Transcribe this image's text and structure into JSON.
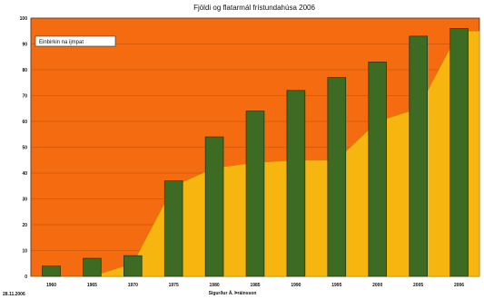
{
  "chart_data": {
    "type": "bar",
    "title": "Fjöldi og flatarmál frístundahúsa 2006",
    "categories": [
      "1960",
      "1965",
      "1970",
      "1975",
      "1980",
      "1985",
      "1990",
      "1995",
      "2000",
      "2005",
      "2006"
    ],
    "series": [
      {
        "name": "",
        "type": "area",
        "values": [
          0,
          0,
          5,
          35,
          42,
          44,
          45,
          45,
          60,
          65,
          95
        ]
      },
      {
        "name": "",
        "type": "bar",
        "values": [
          4,
          7,
          8,
          37,
          54,
          64,
          72,
          77,
          83,
          93,
          96
        ]
      }
    ],
    "legend_label": "Einbirkin na ijmpat",
    "ylim": [
      0,
      100
    ],
    "yticks": [
      "0",
      "10",
      "20",
      "30",
      "40",
      "50",
      "60",
      "70",
      "80",
      "90",
      "100"
    ],
    "grid": true,
    "legend_placement": "top-left",
    "footer_date": "28.11.2006",
    "footer_author": "Sigurður Á. Þráinsson",
    "colors": {
      "background": "#f56b10",
      "area": "#f7b60f",
      "bar": "#3e6b24",
      "grid": "#8a3a0a",
      "axis": "#333333"
    }
  }
}
